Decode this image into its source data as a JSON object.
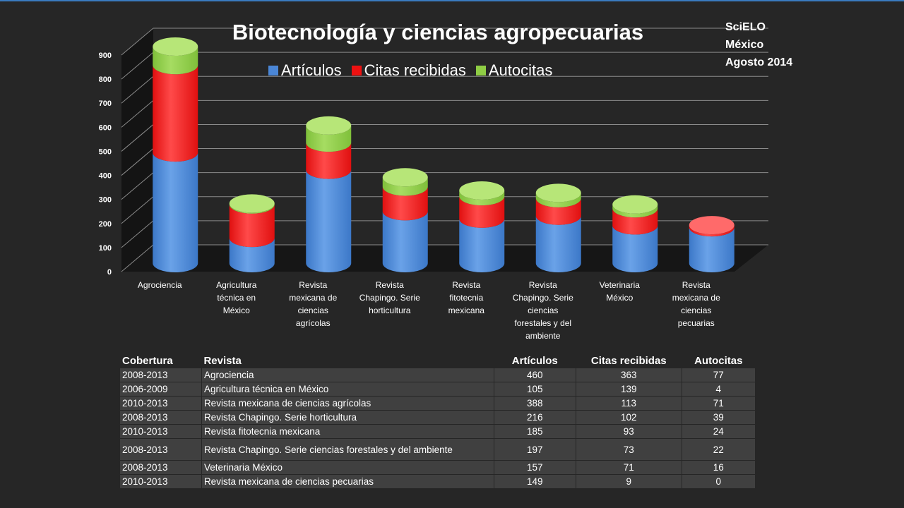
{
  "source": {
    "line1": "SciELO",
    "line2": "México",
    "line3": "Agosto 2014"
  },
  "colors": {
    "articulos": "#4a86d6",
    "citas": "#ee1111",
    "autocitas": "#8fcd44",
    "background": "#262626"
  },
  "chart_data": {
    "type": "bar",
    "stacked": true,
    "three_d": true,
    "title": "Biotecnología y ciencias agropecuarias",
    "categories": [
      "Agrociencia",
      "Agricultura técnica en México",
      "Revista mexicana de ciencias agrícolas",
      "Revista Chapingo. Serie horticultura",
      "Revista fitotecnia mexicana",
      "Revista Chapingo. Serie ciencias forestales y del ambiente",
      "Veterinaria México",
      "Revista mexicana de ciencias pecuarias"
    ],
    "category_labels": [
      [
        "Agrociencia"
      ],
      [
        "Agricultura",
        "técnica en",
        "México"
      ],
      [
        "Revista",
        "mexicana de",
        "ciencias",
        "agrícolas"
      ],
      [
        "Revista",
        "Chapingo. Serie",
        "horticultura"
      ],
      [
        "Revista",
        "fitotecnia",
        "mexicana"
      ],
      [
        "Revista",
        "Chapingo. Serie",
        "ciencias",
        "forestales y del",
        "ambiente"
      ],
      [
        "Veterinaria",
        "México"
      ],
      [
        "Revista",
        "mexicana de",
        "ciencias",
        "pecuarias"
      ]
    ],
    "series": [
      {
        "name": "Artículos",
        "values": [
          460,
          105,
          388,
          216,
          185,
          197,
          157,
          149
        ]
      },
      {
        "name": "Citas recibidas",
        "values": [
          363,
          139,
          113,
          102,
          93,
          73,
          71,
          9
        ]
      },
      {
        "name": "Autocitas",
        "values": [
          77,
          4,
          71,
          39,
          24,
          22,
          16,
          0
        ]
      }
    ],
    "ylim": [
      0,
      900
    ],
    "yticks": [
      "0",
      "100",
      "200",
      "300",
      "400",
      "500",
      "600",
      "700",
      "800",
      "900"
    ],
    "grid": true,
    "legend_position": "top"
  },
  "table": {
    "headers": [
      "Cobertura",
      "Revista",
      "Artículos",
      "Citas recibidas",
      "Autocitas"
    ],
    "rows": [
      [
        "2008-2013",
        "Agrociencia",
        "460",
        "363",
        "77"
      ],
      [
        "2006-2009",
        "Agricultura técnica en México",
        "105",
        "139",
        "4"
      ],
      [
        "2010-2013",
        "Revista mexicana de ciencias agrícolas",
        "388",
        "113",
        "71"
      ],
      [
        "2008-2013",
        "Revista Chapingo. Serie horticultura",
        "216",
        "102",
        "39"
      ],
      [
        "2010-2013",
        "Revista fitotecnia mexicana",
        "185",
        "93",
        "24"
      ],
      [
        "2008-2013",
        "Revista Chapingo. Serie ciencias forestales y del ambiente",
        "197",
        "73",
        "22"
      ],
      [
        "2008-2013",
        "Veterinaria México",
        "157",
        "71",
        "16"
      ],
      [
        "2010-2013",
        "Revista mexicana de ciencias pecuarias",
        "149",
        "9",
        "0"
      ]
    ]
  }
}
